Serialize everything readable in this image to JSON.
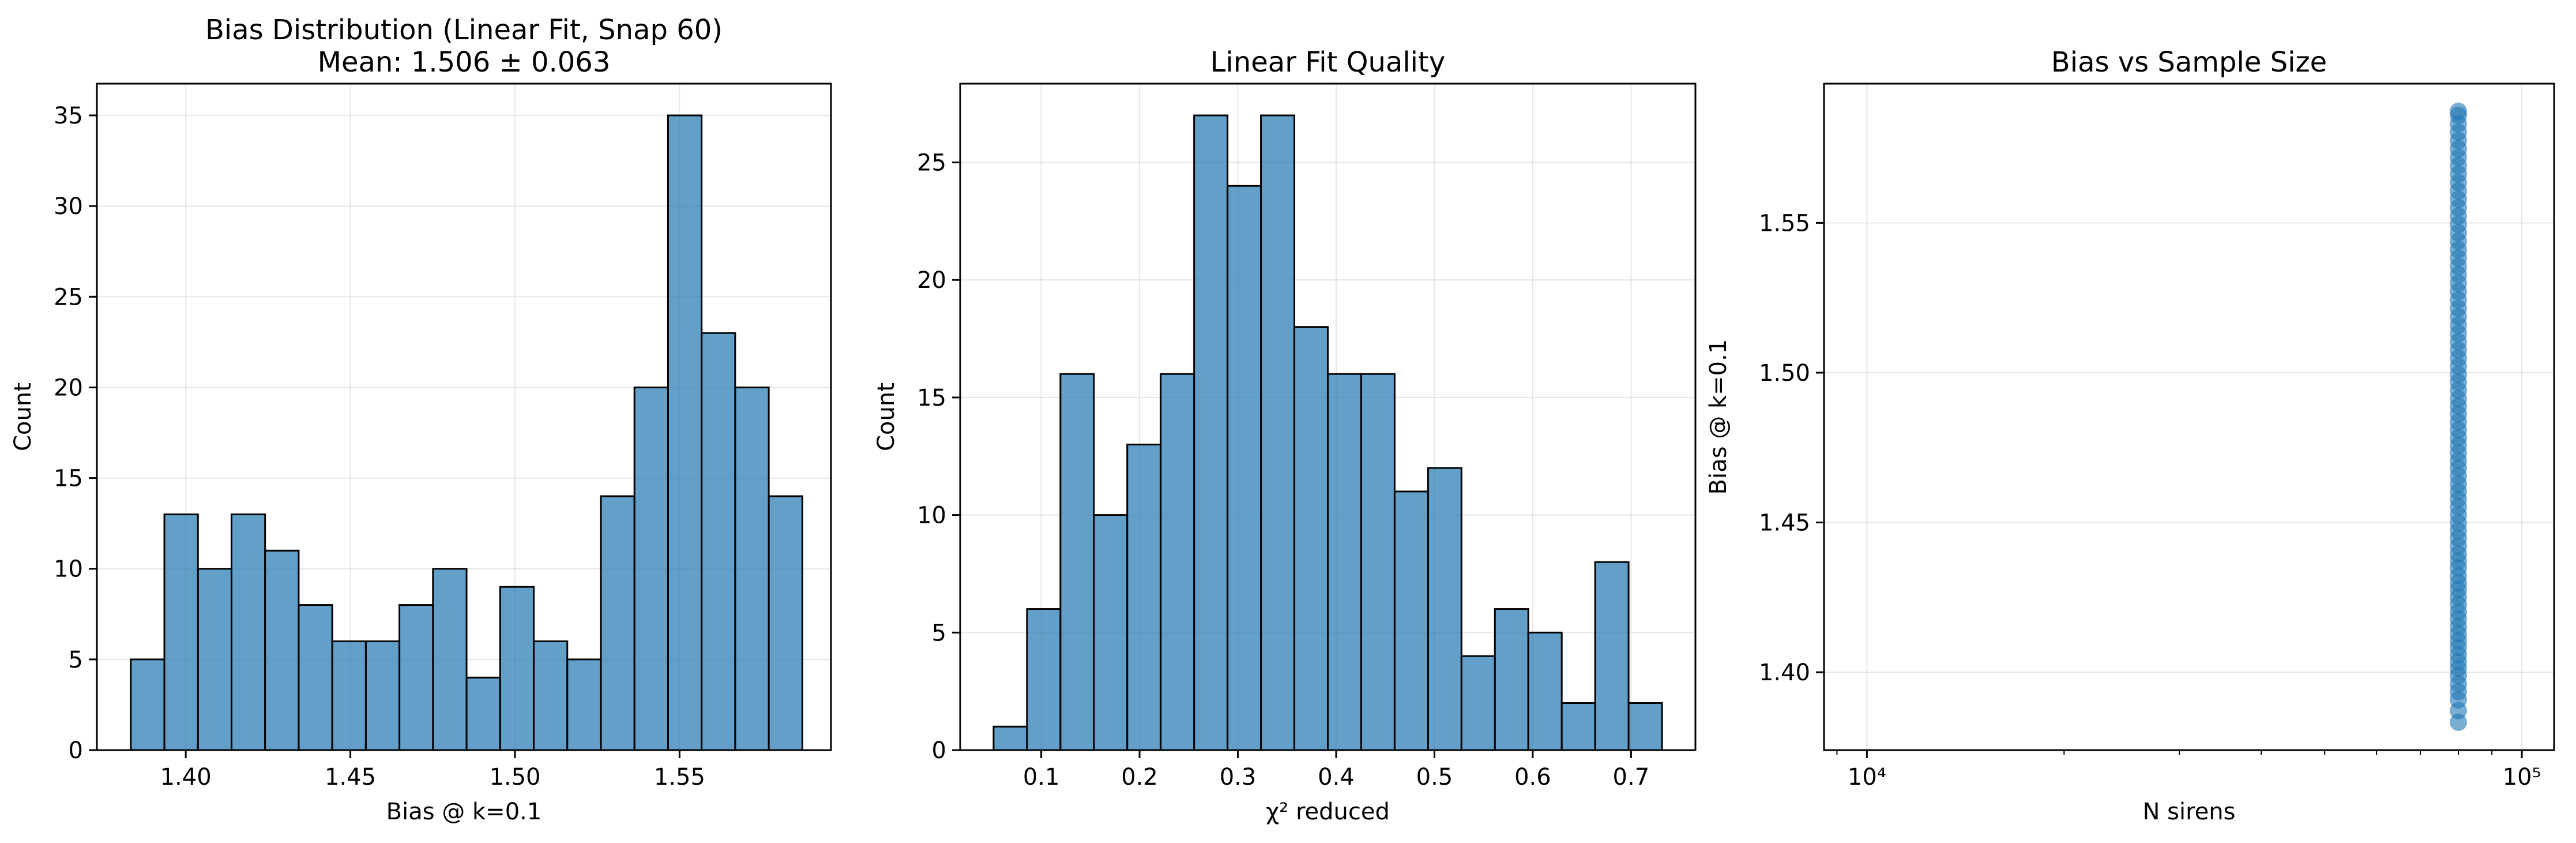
{
  "figure": {
    "background": "#ffffff"
  },
  "style": {
    "bar_color": "#1f77b4",
    "bar_alpha": 0.7,
    "edge_color": "#000000",
    "grid_color": "#b0b0b0"
  },
  "chart_data": [
    {
      "type": "bar",
      "subtype": "histogram",
      "title": "Bias Distribution (Linear Fit, Snap 60)",
      "subtitle": "Mean: 1.506 ± 0.063",
      "xlabel": "Bias @ k=0.1",
      "ylabel": "Count",
      "xlim": [
        1.373,
        1.596
      ],
      "ylim": [
        0,
        36.75
      ],
      "xticks": [
        1.4,
        1.45,
        1.5,
        1.55
      ],
      "xtick_labels": [
        "1.40",
        "1.45",
        "1.50",
        "1.55"
      ],
      "yticks": [
        0,
        5,
        10,
        15,
        20,
        25,
        30,
        35
      ],
      "ytick_labels": [
        "0",
        "5",
        "10",
        "15",
        "20",
        "25",
        "30",
        "35"
      ],
      "grid": true,
      "bin_edges": [
        1.3833,
        1.3935,
        1.4037,
        1.4139,
        1.4241,
        1.4343,
        1.4445,
        1.4547,
        1.4649,
        1.4751,
        1.4853,
        1.4955,
        1.5057,
        1.5159,
        1.5261,
        1.5363,
        1.5465,
        1.5567,
        1.5669,
        1.5771,
        1.5873
      ],
      "values": [
        5,
        13,
        10,
        13,
        11,
        8,
        6,
        6,
        8,
        10,
        4,
        9,
        6,
        5,
        14,
        20,
        35,
        23,
        20,
        14
      ]
    },
    {
      "type": "bar",
      "subtype": "histogram",
      "title": "Linear Fit Quality",
      "xlabel": "χ² reduced",
      "ylabel": "Count",
      "xlim": [
        0.0175,
        0.7655
      ],
      "ylim": [
        0,
        28.35
      ],
      "xticks": [
        0.1,
        0.2,
        0.3,
        0.4,
        0.5,
        0.6,
        0.7
      ],
      "xtick_labels": [
        "0.1",
        "0.2",
        "0.3",
        "0.4",
        "0.5",
        "0.6",
        "0.7"
      ],
      "yticks": [
        0,
        5,
        10,
        15,
        20,
        25
      ],
      "ytick_labels": [
        "0",
        "5",
        "10",
        "15",
        "20",
        "25"
      ],
      "grid": true,
      "bin_edges": [
        0.0515,
        0.0855,
        0.1195,
        0.1535,
        0.1875,
        0.2215,
        0.2555,
        0.2895,
        0.3235,
        0.3575,
        0.3915,
        0.4255,
        0.4595,
        0.4935,
        0.5275,
        0.5615,
        0.5955,
        0.6295,
        0.6635,
        0.6975,
        0.7315
      ],
      "values": [
        1,
        6,
        16,
        10,
        13,
        16,
        27,
        24,
        27,
        18,
        16,
        16,
        11,
        12,
        4,
        6,
        5,
        2,
        8,
        2
      ]
    },
    {
      "type": "scatter",
      "title": "Bias vs Sample Size",
      "xlabel": "N sirens",
      "ylabel": "Bias @ k=0.1",
      "xscale": "log",
      "xlim": [
        8600,
        112000
      ],
      "ylim": [
        1.374,
        1.5965
      ],
      "xticks": [
        10000,
        100000
      ],
      "xtick_labels": [
        "10⁴",
        "10⁵"
      ],
      "yticks": [
        1.4,
        1.45,
        1.5,
        1.55
      ],
      "ytick_labels": [
        "1.40",
        "1.45",
        "1.50",
        "1.55"
      ],
      "grid": true,
      "x_constant": 80000,
      "y": [
        1.3833,
        1.3872,
        1.3908,
        1.3935,
        1.3961,
        1.3989,
        1.4012,
        1.4035,
        1.4058,
        1.4083,
        1.4105,
        1.4128,
        1.4152,
        1.4178,
        1.4201,
        1.4226,
        1.4251,
        1.4276,
        1.4298,
        1.4322,
        1.4348,
        1.4371,
        1.4395,
        1.4421,
        1.4447,
        1.4472,
        1.4498,
        1.4525,
        1.4552,
        1.4578,
        1.4603,
        1.4628,
        1.4655,
        1.4681,
        1.4706,
        1.4732,
        1.4758,
        1.4783,
        1.4809,
        1.4835,
        1.4862,
        1.4888,
        1.4913,
        1.4941,
        1.4968,
        1.4994,
        1.5021,
        1.5048,
        1.5075,
        1.5103,
        1.5131,
        1.5159,
        1.5187,
        1.5215,
        1.5243,
        1.5271,
        1.5299,
        1.5327,
        1.5355,
        1.5383,
        1.5411,
        1.5439,
        1.5467,
        1.5495,
        1.5523,
        1.5551,
        1.5579,
        1.5607,
        1.5635,
        1.5663,
        1.5691,
        1.5719,
        1.5747,
        1.5775,
        1.5803,
        1.5831,
        1.5859,
        1.5873
      ]
    }
  ]
}
